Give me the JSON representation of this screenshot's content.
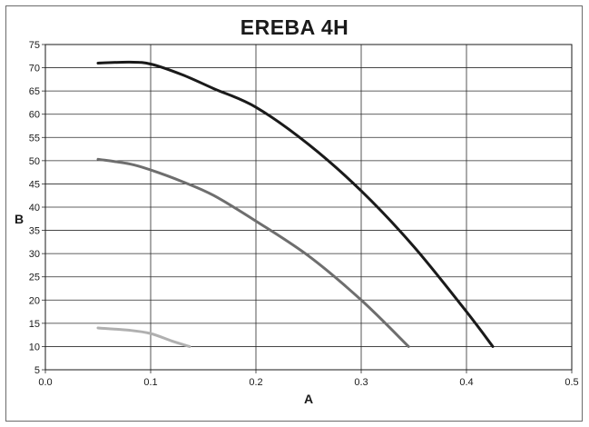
{
  "chart_data": {
    "type": "line",
    "title": "EREBA 4H",
    "xlabel": "A",
    "ylabel": "B",
    "xlim": [
      0.0,
      0.5
    ],
    "ylim": [
      5,
      75
    ],
    "xticks": [
      0.0,
      0.1,
      0.2,
      0.3,
      0.4,
      0.5
    ],
    "xtick_labels": [
      "0.0",
      "0.1",
      "0.2",
      "0.3",
      "0.4",
      "0.5"
    ],
    "yticks": [
      5,
      10,
      15,
      20,
      25,
      30,
      35,
      40,
      45,
      50,
      55,
      60,
      65,
      70,
      75
    ],
    "ytick_labels": [
      "5",
      "10",
      "15",
      "20",
      "25",
      "30",
      "35",
      "40",
      "45",
      "50",
      "55",
      "60",
      "65",
      "70",
      "75"
    ],
    "grid": true,
    "series": [
      {
        "color": "#1a1a1a",
        "x": [
          0.05,
          0.08,
          0.1,
          0.13,
          0.16,
          0.2,
          0.25,
          0.3,
          0.35,
          0.4,
          0.425
        ],
        "y": [
          71,
          71.2,
          70.8,
          68.5,
          65.5,
          61.5,
          53.5,
          43.5,
          31.5,
          17.5,
          10
        ]
      },
      {
        "color": "#6e6e6e",
        "x": [
          0.05,
          0.08,
          0.1,
          0.13,
          0.16,
          0.2,
          0.25,
          0.3,
          0.345
        ],
        "y": [
          50.3,
          49.3,
          48.0,
          45.5,
          42.5,
          37.0,
          29.5,
          20.0,
          10
        ]
      },
      {
        "color": "#b0b0b0",
        "x": [
          0.05,
          0.08,
          0.1,
          0.12,
          0.137
        ],
        "y": [
          14,
          13.5,
          12.8,
          11.2,
          10
        ]
      }
    ]
  }
}
